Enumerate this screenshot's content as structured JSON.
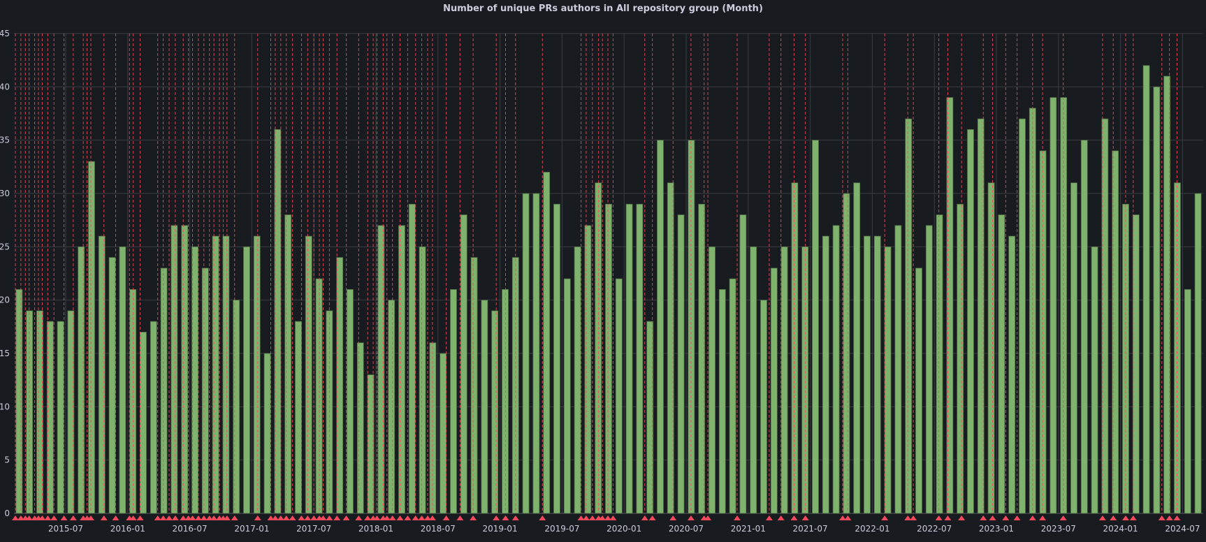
{
  "chart_data": {
    "type": "bar",
    "title": "Number of unique PRs authors in All repository group (Month)",
    "xlabel": "",
    "ylabel": "",
    "ylim": [
      0,
      45
    ],
    "y_ticks": [
      "0",
      "5",
      "10",
      "15",
      "20",
      "25",
      "30",
      "35",
      "40",
      "45"
    ],
    "x_ticks": [
      "2015-07",
      "2016-01",
      "2016-07",
      "2017-01",
      "2017-07",
      "2018-01",
      "2018-07",
      "2019-01",
      "2019-07",
      "2020-01",
      "2020-07",
      "2021-01",
      "2021-07",
      "2022-01",
      "2022-07",
      "2023-01",
      "2023-07",
      "2024-01",
      "2024-07"
    ],
    "grid": true,
    "legend": "none",
    "start_month": "2015-02",
    "end_month": "2024-08",
    "values": [
      21,
      19,
      19,
      18,
      18,
      19,
      25,
      33,
      26,
      24,
      25,
      21,
      17,
      18,
      23,
      27,
      27,
      25,
      23,
      26,
      26,
      20,
      25,
      26,
      15,
      36,
      28,
      18,
      26,
      22,
      19,
      24,
      21,
      16,
      13,
      27,
      20,
      27,
      29,
      25,
      16,
      15,
      21,
      28,
      24,
      20,
      19,
      21,
      24,
      30,
      30,
      32,
      29,
      22,
      25,
      27,
      31,
      29,
      22,
      29,
      29,
      18,
      35,
      31,
      28,
      35,
      29,
      25,
      21,
      22,
      28,
      25,
      20,
      23,
      25,
      31,
      25,
      35,
      26,
      27,
      30,
      31,
      26,
      26,
      25,
      27,
      37,
      23,
      27,
      28,
      39,
      29,
      36,
      37,
      31,
      28,
      26,
      37,
      38,
      34,
      39,
      39,
      31,
      35,
      25,
      37,
      34,
      29,
      28,
      42,
      40,
      41,
      31,
      21,
      30
    ],
    "annotations": [
      "2015-02-05",
      "2015-02-21",
      "2015-03-04",
      "2015-03-15",
      "2015-04-01",
      "2015-04-12",
      "2015-04-23",
      "2015-05-09",
      "2015-05-27",
      "2015-06-26",
      "2015-07-23",
      "2015-08-22",
      "2015-09-03",
      "2015-09-14",
      "2015-10-22",
      "2015-11-26",
      "2016-01-06",
      "2016-01-17",
      "2016-02-07",
      "2016-03-28",
      "2016-04-14",
      "2016-05-01",
      "2016-05-19",
      "2016-06-12",
      "2016-06-27",
      "2016-07-09",
      "2016-07-26",
      "2016-08-12",
      "2016-08-28",
      "2016-09-11",
      "2016-09-27",
      "2016-10-08",
      "2016-10-19",
      "2016-11-11",
      "2017-01-18",
      "2017-02-26",
      "2017-03-09",
      "2017-03-25",
      "2017-04-11",
      "2017-04-29",
      "2017-05-25",
      "2017-06-13",
      "2017-07-01",
      "2017-07-17",
      "2017-07-28",
      "2017-08-16",
      "2017-09-08",
      "2017-10-05",
      "2017-11-11",
      "2017-12-07",
      "2017-12-23",
      "2018-01-04",
      "2018-01-22",
      "2018-02-03",
      "2018-02-19",
      "2018-03-11",
      "2018-04-03",
      "2018-04-26",
      "2018-05-14",
      "2018-06-01",
      "2018-06-15",
      "2018-07-25",
      "2018-09-05",
      "2018-10-13",
      "2018-12-20",
      "2019-01-17",
      "2019-02-16",
      "2019-05-04",
      "2019-08-26",
      "2019-09-11",
      "2019-09-29",
      "2019-10-17",
      "2019-10-28",
      "2019-11-14",
      "2019-11-29",
      "2020-03-01",
      "2020-03-23",
      "2020-05-23",
      "2020-07-15",
      "2020-08-23",
      "2020-09-04",
      "2020-11-29",
      "2021-03-02",
      "2021-04-06",
      "2021-05-14",
      "2021-06-17",
      "2021-10-05",
      "2021-10-20",
      "2022-02-07",
      "2022-04-14",
      "2022-04-30",
      "2022-07-14",
      "2022-08-10",
      "2022-09-20",
      "2022-11-23",
      "2022-12-20",
      "2023-01-28",
      "2023-03-01",
      "2023-04-16",
      "2023-05-15",
      "2023-07-15",
      "2023-11-09",
      "2023-12-10",
      "2024-01-16",
      "2024-02-08",
      "2024-05-01",
      "2024-05-23",
      "2024-06-15"
    ],
    "colors": {
      "bar": "#7eb26d",
      "annotation": "#f2495c",
      "background": "#181b1f",
      "grid": "#3a3d42",
      "text": "#ccccdc"
    }
  }
}
